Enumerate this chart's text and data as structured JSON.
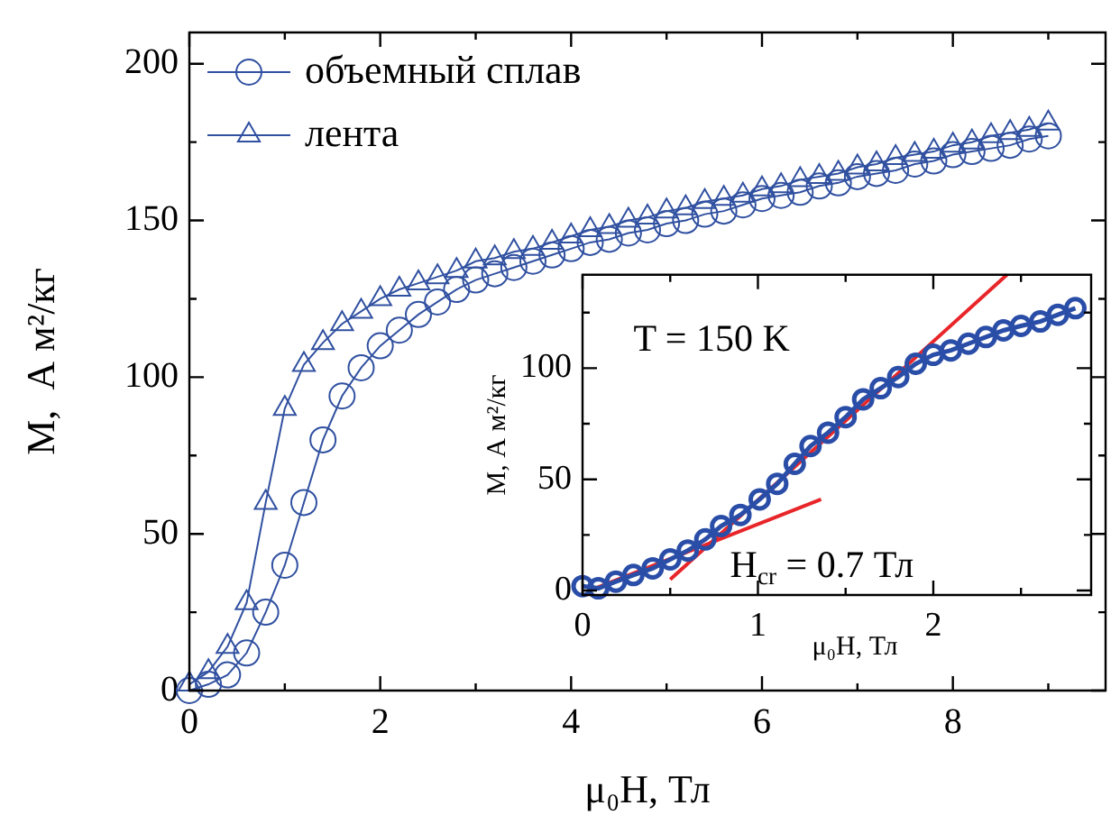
{
  "chart_data": [
    {
      "type": "line",
      "xlabel": "μ₀H, Тл",
      "ylabel": "M,  А м²/кг",
      "xlim": [
        0,
        9.6
      ],
      "ylim": [
        0,
        210
      ],
      "legend": "top left",
      "xticks": [
        0,
        {
          "value": 1,
          "label": null
        },
        2,
        {
          "value": 3,
          "label": null
        },
        4,
        {
          "value": 5,
          "label": null
        },
        6,
        {
          "value": 7,
          "label": null
        },
        8,
        {
          "value": 9,
          "label": null
        }
      ],
      "yticks": [
        0,
        {
          "value": 25,
          "label": null
        },
        50,
        {
          "value": 75,
          "label": null
        },
        100,
        {
          "value": 125,
          "label": null
        },
        150,
        {
          "value": 175,
          "label": null
        },
        200
      ],
      "x": [
        0,
        0.2,
        0.4,
        0.6,
        0.8,
        1.0,
        1.2,
        1.4,
        1.6,
        1.8,
        2.0,
        2.2,
        2.4,
        2.6,
        2.8,
        3.0,
        3.2,
        3.4,
        3.6,
        3.8,
        4.0,
        4.2,
        4.4,
        4.6,
        4.8,
        5.0,
        5.2,
        5.4,
        5.6,
        5.8,
        6.0,
        6.2,
        6.4,
        6.6,
        6.8,
        7.0,
        7.2,
        7.4,
        7.6,
        7.8,
        8.0,
        8.2,
        8.4,
        8.6,
        8.8,
        9.0
      ],
      "series": [
        {
          "name": "объемный сплав",
          "color": "#3050a0",
          "marker": "circle",
          "values": [
            0,
            2,
            5,
            12,
            25,
            40,
            60,
            80,
            94,
            103,
            110,
            115,
            120,
            124,
            128,
            131,
            133,
            135,
            137,
            139,
            141,
            143,
            144,
            146,
            147,
            149,
            150,
            152,
            153,
            155,
            157,
            158,
            159,
            161,
            162,
            164,
            165,
            166,
            168,
            169,
            171,
            172,
            173,
            174,
            176,
            177
          ]
        },
        {
          "name": "лента",
          "color": "#3050a0",
          "marker": "triangle",
          "values": [
            2,
            6,
            14,
            28,
            60,
            90,
            104,
            111,
            117,
            121,
            125,
            128,
            130,
            132,
            134,
            137,
            138,
            140,
            141,
            143,
            145,
            147,
            148,
            150,
            151,
            153,
            154,
            156,
            157,
            158,
            160,
            161,
            163,
            164,
            165,
            167,
            168,
            170,
            171,
            172,
            174,
            175,
            177,
            178,
            179,
            181
          ]
        }
      ]
    },
    {
      "type": "line",
      "xlabel": "μ₀H, Тл",
      "ylabel": "M, А м²/кг",
      "xlim": [
        0,
        2.9
      ],
      "ylim": [
        -2,
        142
      ],
      "xticks": [
        0,
        {
          "value": 0.5,
          "label": null
        },
        1,
        {
          "value": 1.5,
          "label": null
        },
        2,
        {
          "value": 2.5,
          "label": null
        }
      ],
      "yticks": [
        0,
        {
          "value": 25,
          "label": null
        },
        50,
        {
          "value": 75,
          "label": null
        },
        100,
        {
          "value": 125,
          "label": null
        }
      ],
      "annotations": [
        "T = 150 K",
        "H$_{cr}$ = 0.7 Тл"
      ],
      "series": [
        {
          "color": "#2a4ea8",
          "marker": "circle",
          "x": [
            0,
            0.09,
            0.19,
            0.29,
            0.4,
            0.5,
            0.6,
            0.7,
            0.79,
            0.9,
            1.01,
            1.11,
            1.21,
            1.3,
            1.4,
            1.5,
            1.6,
            1.7,
            1.8,
            1.9,
            2.0,
            2.1,
            2.2,
            2.3,
            2.4,
            2.5,
            2.61,
            2.71,
            2.81
          ],
          "values": [
            2,
            1,
            4,
            7,
            10,
            14,
            18,
            23,
            29,
            34,
            41,
            48,
            57,
            65,
            71,
            78,
            86,
            91,
            96,
            102,
            106,
            108,
            111,
            114,
            117,
            119,
            121,
            124,
            127
          ]
        },
        {
          "type": "line",
          "color": "#e8262a",
          "marker": "none",
          "x": [
            0.04,
            1.36
          ],
          "values": [
            0,
            41
          ]
        },
        {
          "type": "line",
          "color": "#e8262a",
          "marker": "none",
          "x": [
            0.5,
            2.42
          ],
          "values": [
            5,
            142
          ]
        }
      ]
    }
  ]
}
